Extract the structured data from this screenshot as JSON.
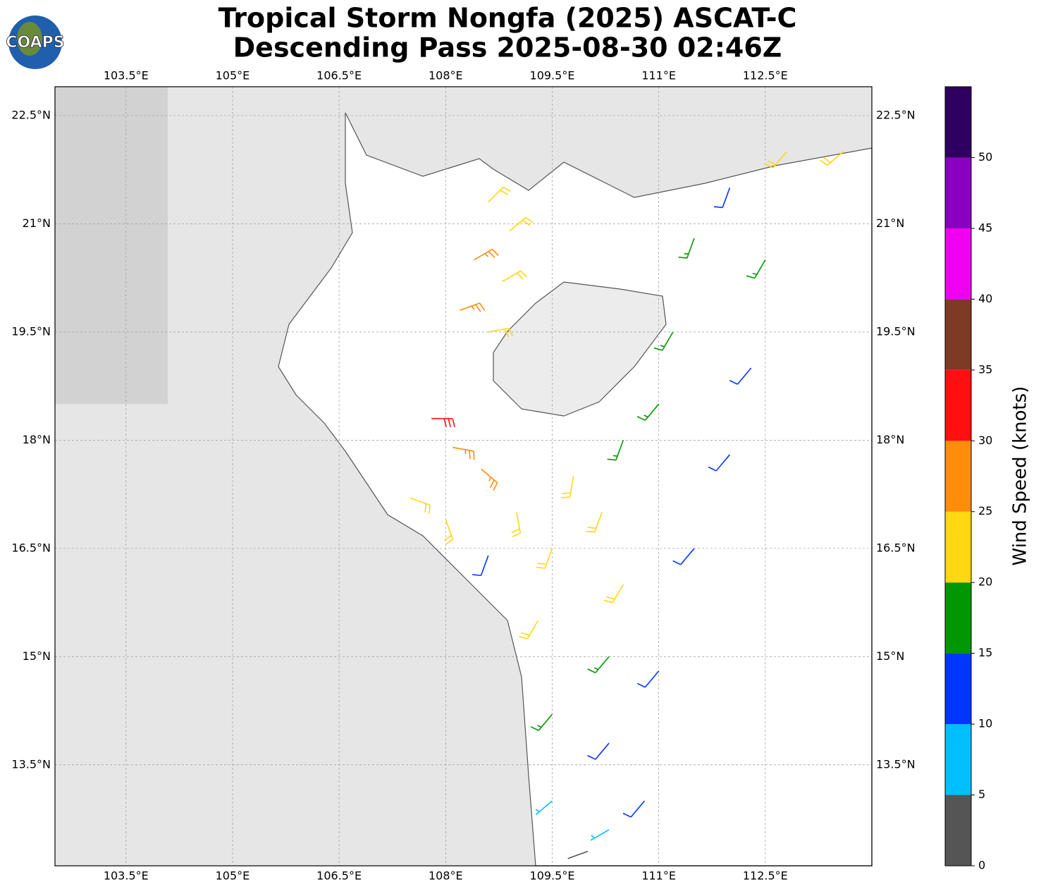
{
  "chart_data": {
    "type": "barbs",
    "logo": "COAPS",
    "title": "Tropical Storm Nongfa (2025) ASCAT-C",
    "subtitle": "Descending Pass 2025-08-30 02:46Z",
    "xlim": [
      102.5,
      114
    ],
    "ylim": [
      12.1,
      22.9
    ],
    "xticks": [
      {
        "value": 103.5,
        "label": "103.5°E"
      },
      {
        "value": 105,
        "label": "105°E"
      },
      {
        "value": 106.5,
        "label": "106.5°E"
      },
      {
        "value": 108,
        "label": "108°E"
      },
      {
        "value": 109.5,
        "label": "109.5°E"
      },
      {
        "value": 111,
        "label": "111°E"
      },
      {
        "value": 112.5,
        "label": "112.5°E"
      }
    ],
    "yticks": [
      {
        "value": 13.5,
        "label": "13.5°N"
      },
      {
        "value": 15,
        "label": "15°N"
      },
      {
        "value": 16.5,
        "label": "16.5°N"
      },
      {
        "value": 18,
        "label": "18°N"
      },
      {
        "value": 19.5,
        "label": "19.5°N"
      },
      {
        "value": 21,
        "label": "21°N"
      },
      {
        "value": 22.5,
        "label": "22.5°N"
      }
    ],
    "grid": true,
    "colorbar": {
      "label": "Wind Speed (knots)",
      "lim": [
        0,
        55
      ],
      "ticks": [
        0,
        5,
        10,
        15,
        20,
        25,
        30,
        35,
        40,
        45,
        50
      ],
      "bins": [
        0,
        5,
        10,
        15,
        20,
        25,
        30,
        35,
        40,
        45,
        50,
        55
      ],
      "colors": [
        "#555555",
        "#00bfff",
        "#0036ff",
        "#009700",
        "#ffd712",
        "#ff8c0a",
        "#ff0f0f",
        "#7f3a26",
        "#f000f0",
        "#8a00c0",
        "#2e0060"
      ]
    },
    "barbs": {
      "lon": [
        108.6,
        108.9,
        108.4,
        108.8,
        108.2,
        108.6,
        107.8,
        108.1,
        108.5,
        107.5,
        108.0,
        108.6,
        109.0,
        111.5,
        112.0,
        112.5,
        111.2,
        112.3,
        111.0,
        112.0,
        110.5,
        109.5,
        110.5,
        111.5,
        109.3,
        110.3,
        111.0,
        109.5,
        110.3,
        109.5,
        110.3,
        110.8,
        110.0,
        112.8,
        113.6,
        109.8,
        110.2
      ],
      "lat": [
        21.3,
        20.9,
        20.5,
        20.2,
        19.8,
        19.5,
        18.3,
        17.9,
        17.6,
        17.2,
        16.9,
        16.4,
        17.0,
        20.8,
        21.5,
        20.5,
        19.5,
        19.0,
        18.5,
        17.8,
        18.0,
        16.5,
        16.0,
        16.5,
        15.5,
        15.0,
        14.8,
        14.2,
        13.8,
        13.0,
        12.6,
        13.0,
        12.3,
        22.0,
        22.0,
        17.5,
        17.0
      ],
      "speed": [
        22,
        24,
        27,
        24,
        27,
        22,
        32,
        28,
        27,
        23,
        22,
        14,
        22,
        17,
        13,
        17,
        17,
        13,
        17,
        13,
        18,
        22,
        22,
        14,
        22,
        18,
        13,
        17,
        13,
        8,
        8,
        12,
        4,
        22,
        22,
        22,
        24
      ],
      "dir": [
        45,
        50,
        60,
        60,
        70,
        80,
        90,
        100,
        130,
        110,
        160,
        200,
        170,
        200,
        200,
        210,
        210,
        220,
        220,
        220,
        200,
        200,
        210,
        220,
        210,
        220,
        220,
        220,
        220,
        230,
        240,
        220,
        250,
        220,
        230,
        190,
        200
      ]
    }
  }
}
